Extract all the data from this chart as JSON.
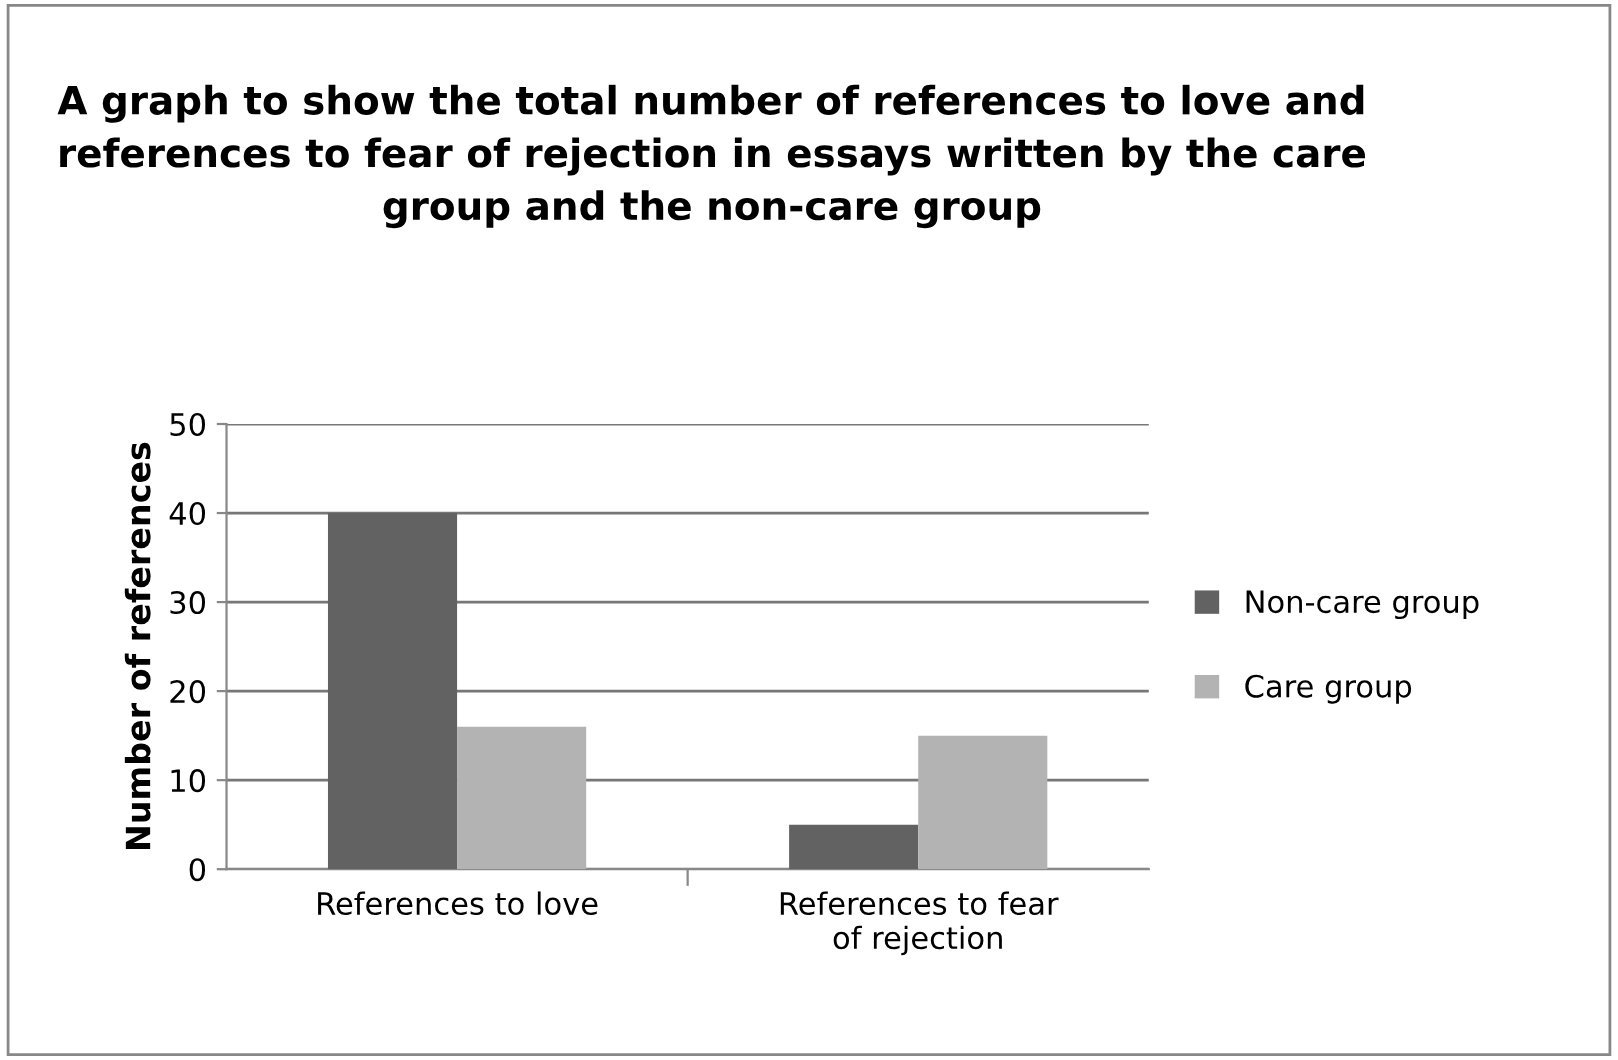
{
  "chart_data": {
    "type": "bar",
    "title": "A graph to show the total number of references to love and references to fear of rejection in essays written by the care group and the non-care group",
    "ylabel": "Number of references",
    "categories": [
      "References to love",
      "References to fear\nof rejection"
    ],
    "series": [
      {
        "name": "Non-care group",
        "color": "#626262",
        "values": [
          40,
          5
        ]
      },
      {
        "name": "Care group",
        "color": "#b3b3b3",
        "values": [
          16,
          15
        ]
      }
    ],
    "ylim": [
      0,
      50
    ],
    "yticks": [
      0,
      10,
      20,
      30,
      40,
      50
    ],
    "grid": "y",
    "legend": "right"
  }
}
